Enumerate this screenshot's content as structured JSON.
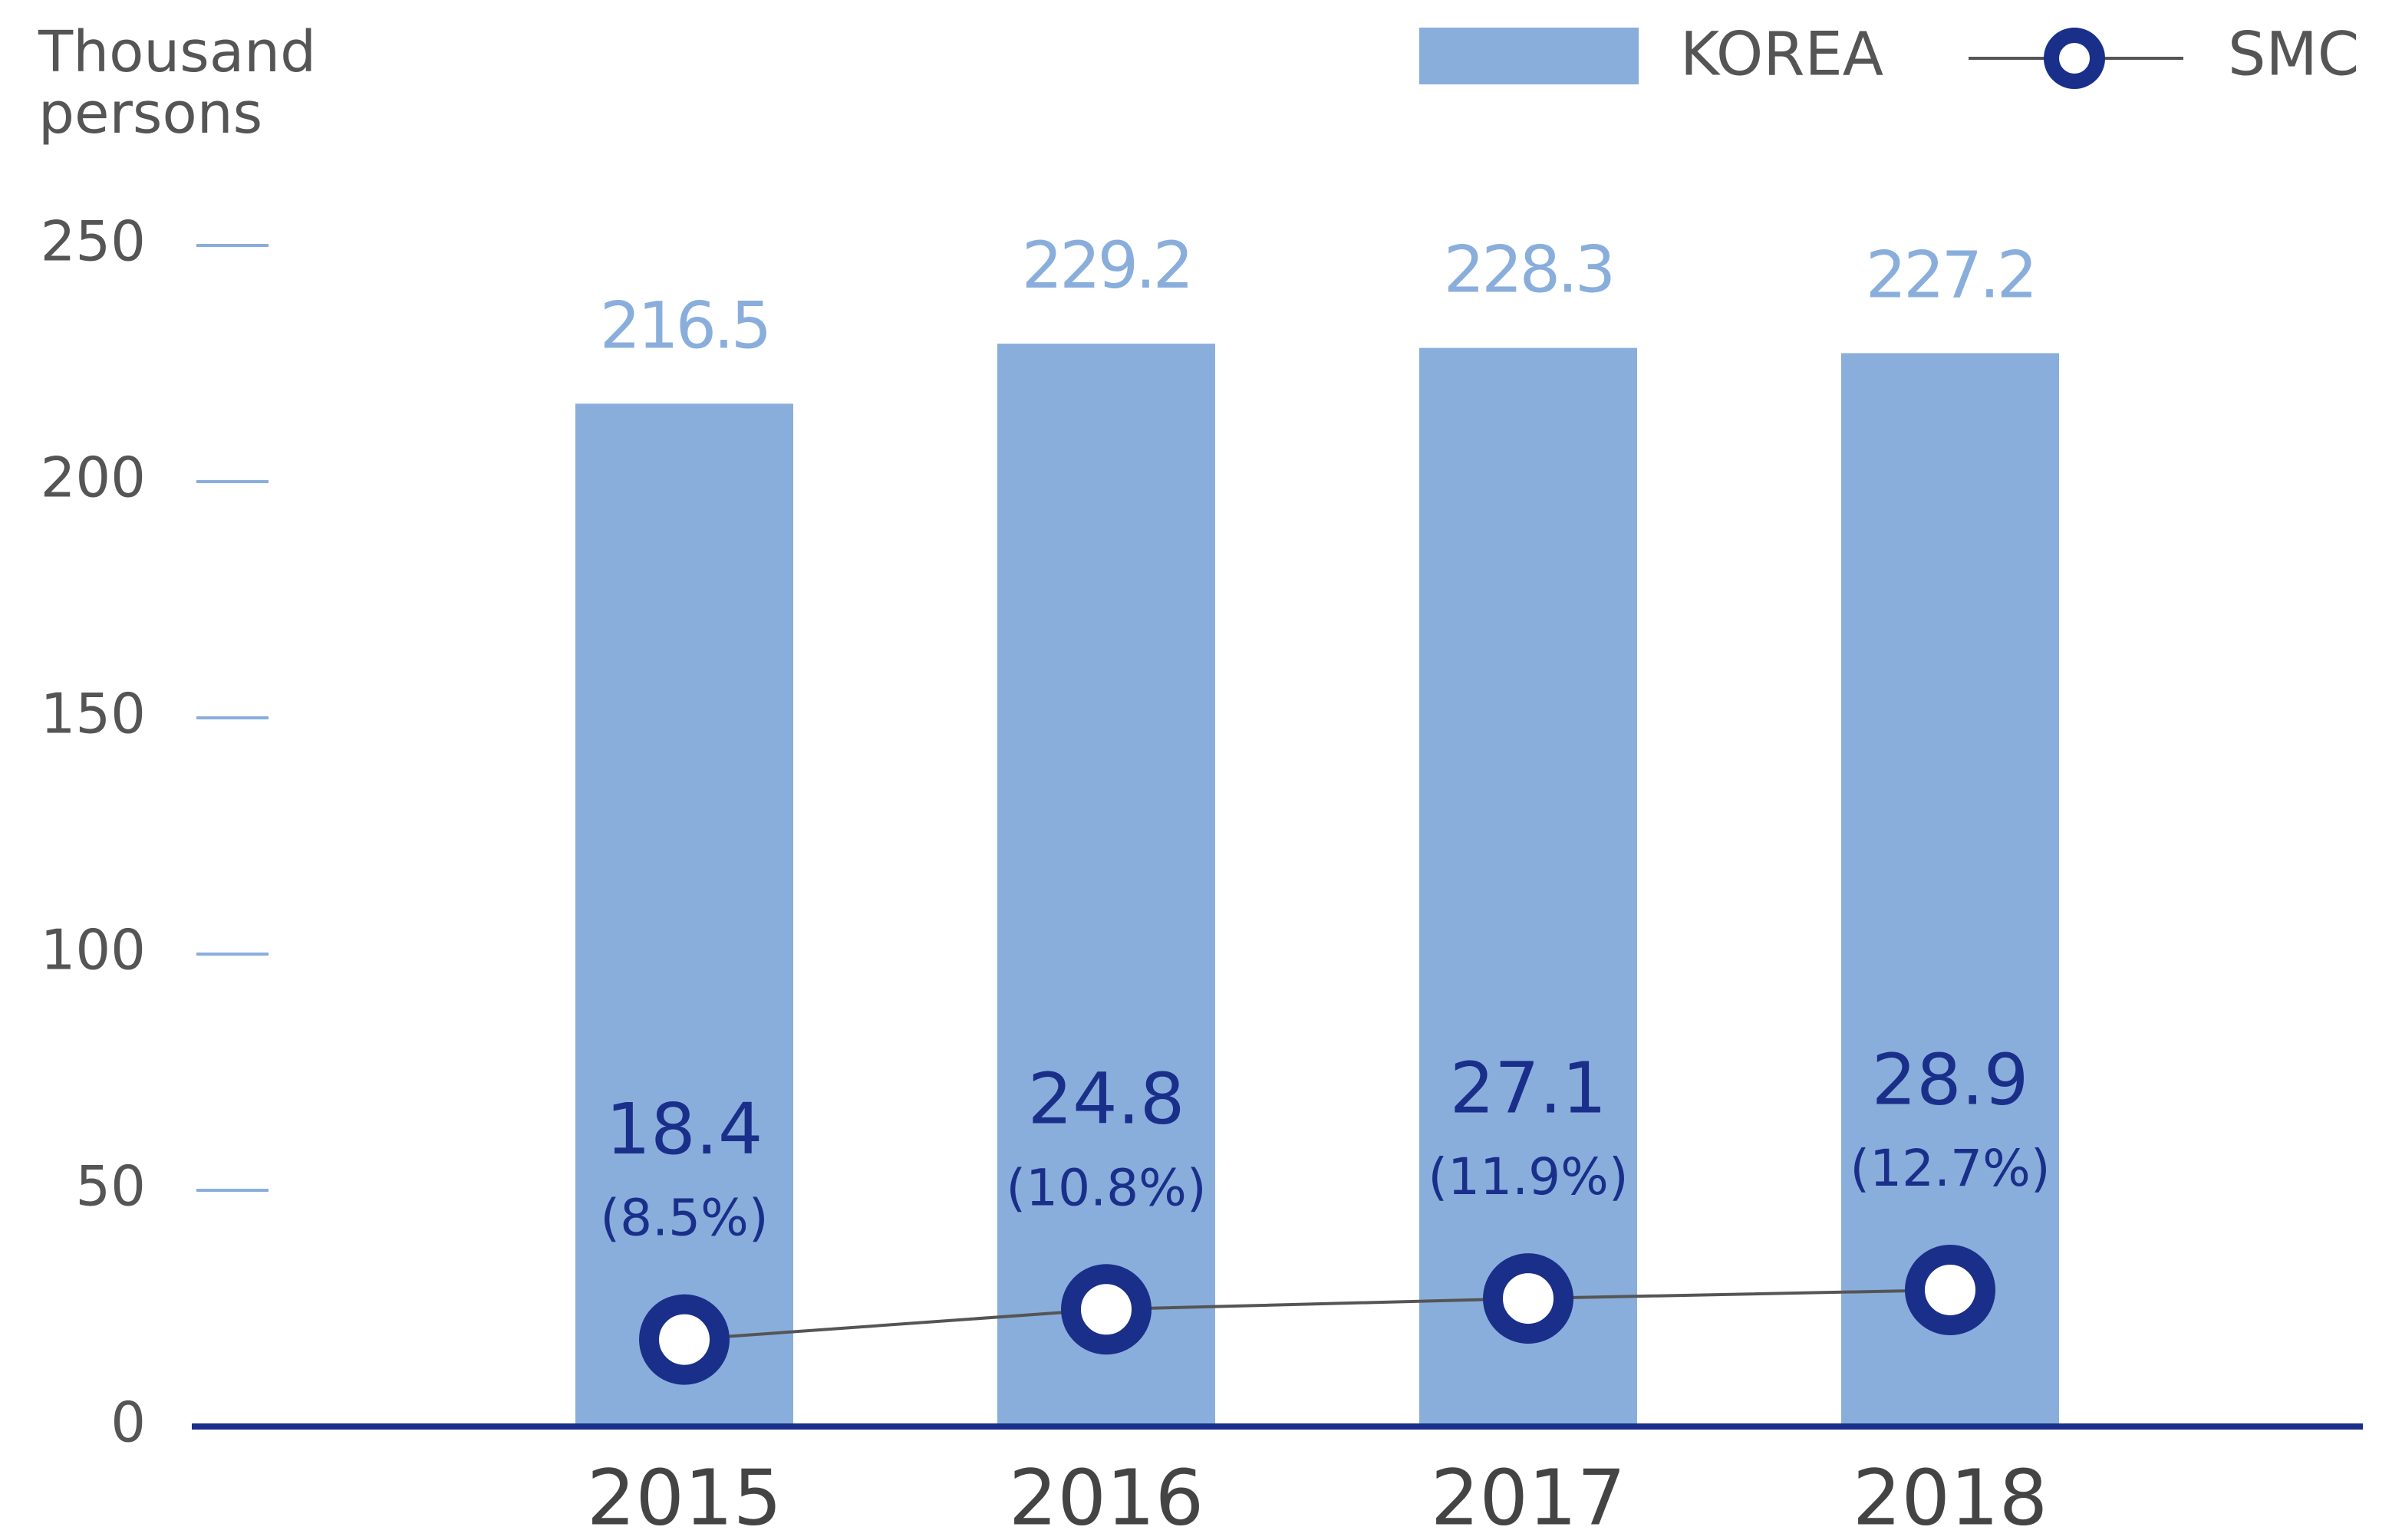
{
  "chart_data": {
    "type": "bar_line",
    "y_label": "Thousand persons",
    "categories": [
      "2015",
      "2016",
      "2017",
      "2018"
    ],
    "series": [
      {
        "name": "KOREA",
        "type": "bar",
        "color": "#8aaedc",
        "values": [
          216.5,
          229.2,
          228.3,
          227.2
        ]
      },
      {
        "name": "SMC",
        "type": "line",
        "color": "#1a2f8a",
        "line_color": "#555555",
        "values": [
          18.4,
          24.8,
          27.1,
          28.9
        ],
        "share_labels": [
          "(8.5%)",
          "(10.8%)",
          "(11.9%)",
          "(12.7%)"
        ]
      }
    ],
    "ylim": [
      0,
      250
    ],
    "yticks": [
      0,
      50,
      100,
      150,
      200,
      250
    ],
    "legend": "top-right"
  }
}
